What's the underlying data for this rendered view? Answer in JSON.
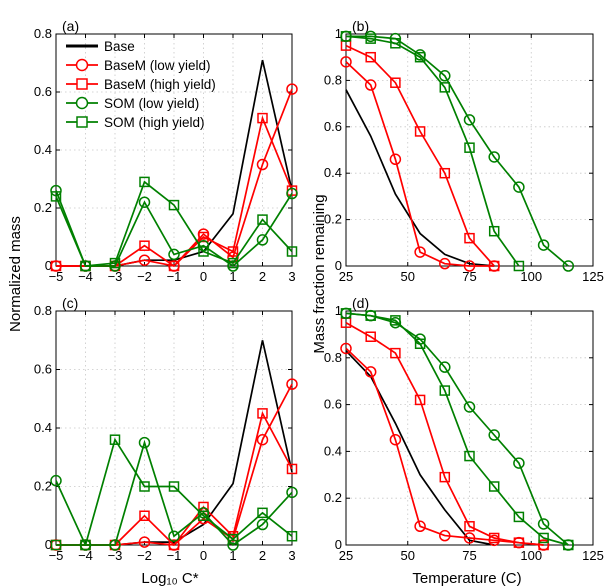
{
  "figure": {
    "shared_xlabel_left": "Log₁₀ C*",
    "shared_xlabel_right": "Temperature (C)",
    "shared_ylabel_left": "Normalized mass",
    "shared_ylabel_right": "Mass fraction remaining"
  },
  "legend": {
    "placement": "top-left of panel (a)",
    "entries": [
      {
        "label": "Base",
        "color": "#000000",
        "marker": "none"
      },
      {
        "label": "BaseM (low yield)",
        "color": "#ff0000",
        "marker": "circle"
      },
      {
        "label": "BaseM (high yield)",
        "color": "#ff0000",
        "marker": "square"
      },
      {
        "label": "SOM (low yield)",
        "color": "#008000",
        "marker": "circle"
      },
      {
        "label": "SOM (high yield)",
        "color": "#008000",
        "marker": "square"
      }
    ]
  },
  "chart_data": [
    {
      "panel": "(a)",
      "type": "line",
      "xlim": [
        -5,
        3
      ],
      "ylim": [
        0,
        0.8
      ],
      "xticks": [
        "−5",
        "−4",
        "−3",
        "−2",
        "−1",
        "0",
        "1",
        "2",
        "3"
      ],
      "yticks": [
        "0",
        "0.2",
        "0.4",
        "0.6",
        "0.8"
      ],
      "grid": true,
      "x": [
        -5,
        -4,
        -3,
        -2,
        -1,
        0,
        1,
        2,
        3
      ],
      "series": [
        {
          "name": "Base",
          "color": "#000000",
          "marker": "none",
          "values": [
            0,
            0,
            0,
            0.02,
            0.02,
            0.05,
            0.18,
            0.71,
            0.26
          ]
        },
        {
          "name": "BaseM (low yield)",
          "color": "#ff0000",
          "marker": "circle",
          "values": [
            0,
            0,
            0,
            0.02,
            0,
            0.11,
            0.03,
            0.35,
            0.61
          ]
        },
        {
          "name": "BaseM (high yield)",
          "color": "#ff0000",
          "marker": "square",
          "values": [
            0,
            0,
            0,
            0.07,
            0,
            0.1,
            0.05,
            0.51,
            0.26
          ]
        },
        {
          "name": "SOM (low yield)",
          "color": "#008000",
          "marker": "circle",
          "values": [
            0.26,
            0,
            0,
            0.22,
            0.04,
            0.07,
            0,
            0.09,
            0.25
          ]
        },
        {
          "name": "SOM (high yield)",
          "color": "#008000",
          "marker": "square",
          "values": [
            0.24,
            0,
            0.01,
            0.29,
            0.21,
            0.05,
            0.01,
            0.16,
            0.05
          ]
        }
      ]
    },
    {
      "panel": "(b)",
      "type": "line",
      "xlim": [
        25,
        125
      ],
      "ylim": [
        0,
        1
      ],
      "xticks": [
        "25",
        "50",
        "75",
        "100",
        "125"
      ],
      "yticks": [
        "0",
        "0.2",
        "0.4",
        "0.6",
        "0.8",
        "1"
      ],
      "grid": true,
      "series": [
        {
          "name": "Base",
          "color": "#000000",
          "marker": "none",
          "x": [
            25,
            35,
            45,
            55,
            65,
            75,
            85
          ],
          "values": [
            0.76,
            0.56,
            0.31,
            0.14,
            0.05,
            0.01,
            0
          ]
        },
        {
          "name": "BaseM (low yield)",
          "color": "#ff0000",
          "marker": "circle",
          "x": [
            25,
            35,
            45,
            55,
            65,
            75,
            85
          ],
          "values": [
            0.88,
            0.78,
            0.46,
            0.06,
            0.01,
            0,
            0
          ]
        },
        {
          "name": "BaseM (high yield)",
          "color": "#ff0000",
          "marker": "square",
          "x": [
            25,
            35,
            45,
            55,
            65,
            75,
            85
          ],
          "values": [
            0.95,
            0.9,
            0.79,
            0.58,
            0.4,
            0.12,
            0
          ]
        },
        {
          "name": "SOM (low yield)",
          "color": "#008000",
          "marker": "circle",
          "x": [
            25,
            35,
            45,
            55,
            65,
            75,
            85,
            95,
            105,
            115
          ],
          "values": [
            0.99,
            0.99,
            0.98,
            0.91,
            0.82,
            0.63,
            0.47,
            0.34,
            0.09,
            0
          ]
        },
        {
          "name": "SOM (high yield)",
          "color": "#008000",
          "marker": "square",
          "x": [
            25,
            35,
            45,
            55,
            65,
            75,
            85,
            95
          ],
          "values": [
            0.99,
            0.98,
            0.96,
            0.9,
            0.77,
            0.51,
            0.15,
            0
          ]
        }
      ]
    },
    {
      "panel": "(c)",
      "type": "line",
      "xlim": [
        -5,
        3
      ],
      "ylim": [
        0,
        0.8
      ],
      "xticks": [
        "−5",
        "−4",
        "−3",
        "−2",
        "−1",
        "0",
        "1",
        "2",
        "3"
      ],
      "yticks": [
        "0",
        "0.2",
        "0.4",
        "0.6",
        "0.8"
      ],
      "grid": true,
      "x": [
        -5,
        -4,
        -3,
        -2,
        -1,
        0,
        1,
        2,
        3
      ],
      "series": [
        {
          "name": "Base",
          "color": "#000000",
          "marker": "none",
          "values": [
            0,
            0,
            0,
            0.01,
            0.01,
            0.07,
            0.21,
            0.7,
            0.25
          ]
        },
        {
          "name": "BaseM (low yield)",
          "color": "#ff0000",
          "marker": "circle",
          "values": [
            0,
            0,
            0,
            0.01,
            0,
            0.09,
            0.02,
            0.36,
            0.55
          ]
        },
        {
          "name": "BaseM (high yield)",
          "color": "#ff0000",
          "marker": "square",
          "values": [
            0,
            0,
            0,
            0.1,
            0,
            0.13,
            0.03,
            0.45,
            0.26
          ]
        },
        {
          "name": "SOM (low yield)",
          "color": "#008000",
          "marker": "circle",
          "values": [
            0.22,
            0,
            0,
            0.35,
            0.03,
            0.11,
            0,
            0.07,
            0.18
          ]
        },
        {
          "name": "SOM (high yield)",
          "color": "#008000",
          "marker": "square",
          "values": [
            0,
            0,
            0.36,
            0.2,
            0.2,
            0.1,
            0.02,
            0.11,
            0.03
          ]
        }
      ]
    },
    {
      "panel": "(d)",
      "type": "line",
      "xlim": [
        25,
        125
      ],
      "ylim": [
        0,
        1
      ],
      "xticks": [
        "25",
        "50",
        "75",
        "100",
        "125"
      ],
      "yticks": [
        "0",
        "0.2",
        "0.4",
        "0.6",
        "0.8",
        "1"
      ],
      "grid": true,
      "series": [
        {
          "name": "Base",
          "color": "#000000",
          "marker": "none",
          "x": [
            25,
            35,
            45,
            55,
            65,
            75,
            85
          ],
          "values": [
            0.83,
            0.72,
            0.52,
            0.3,
            0.15,
            0.02,
            0
          ]
        },
        {
          "name": "BaseM (low yield)",
          "color": "#ff0000",
          "marker": "circle",
          "x": [
            25,
            35,
            45,
            55,
            65,
            75,
            85,
            95,
            105
          ],
          "values": [
            0.84,
            0.74,
            0.45,
            0.08,
            0.04,
            0.03,
            0.02,
            0.01,
            0
          ]
        },
        {
          "name": "BaseM (high yield)",
          "color": "#ff0000",
          "marker": "square",
          "x": [
            25,
            35,
            45,
            55,
            65,
            75,
            85,
            95,
            105
          ],
          "values": [
            0.95,
            0.89,
            0.82,
            0.62,
            0.29,
            0.08,
            0.03,
            0.01,
            0
          ]
        },
        {
          "name": "SOM (low yield)",
          "color": "#008000",
          "marker": "circle",
          "x": [
            25,
            35,
            45,
            55,
            65,
            75,
            85,
            95,
            105,
            115
          ],
          "values": [
            0.99,
            0.98,
            0.95,
            0.88,
            0.76,
            0.59,
            0.47,
            0.35,
            0.09,
            0
          ]
        },
        {
          "name": "SOM (high yield)",
          "color": "#008000",
          "marker": "square",
          "x": [
            25,
            35,
            45,
            55,
            65,
            75,
            85,
            95,
            105,
            115
          ],
          "values": [
            0.99,
            0.98,
            0.96,
            0.86,
            0.66,
            0.38,
            0.25,
            0.12,
            0.03,
            0
          ]
        }
      ]
    }
  ]
}
